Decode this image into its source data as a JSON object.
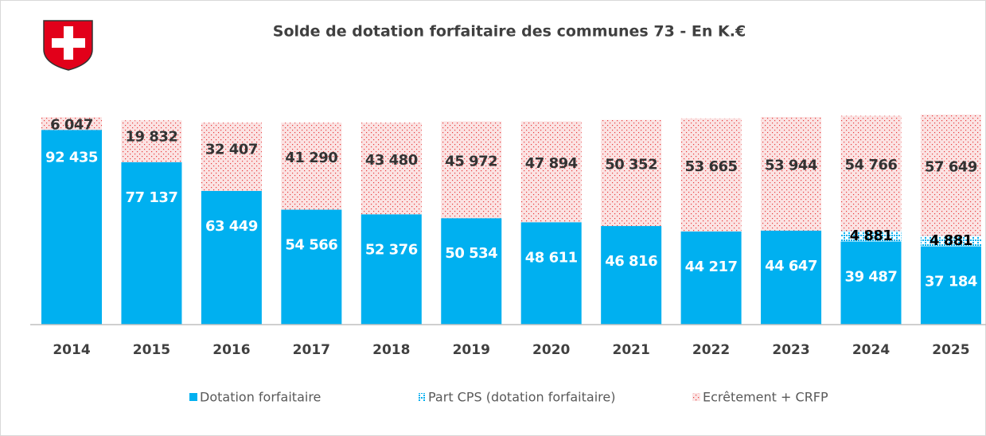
{
  "chart_data": {
    "type": "stacked_bar",
    "title": "Solde de dotation forfaitaire des communes 73 - En K.€",
    "categories": [
      "2014",
      "2015",
      "2016",
      "2017",
      "2018",
      "2019",
      "2020",
      "2021",
      "2022",
      "2023",
      "2024",
      "2025"
    ],
    "series": [
      {
        "name": "Dotation forfaitaire",
        "color": "#00b0f0",
        "label_color": "#ffffff",
        "values": [
          92435,
          77137,
          63449,
          54566,
          52376,
          50534,
          48611,
          46816,
          44217,
          44647,
          39487,
          37184
        ],
        "value_labels": [
          "92 435",
          "77 137",
          "63 449",
          "54 566",
          "52 376",
          "50 534",
          "48 611",
          "46 816",
          "44 217",
          "44 647",
          "39 487",
          "37 184"
        ]
      },
      {
        "name": "Part CPS (dotation forfaitaire)",
        "color": "#00b0f0",
        "label_color": "#000000",
        "values": [
          null,
          null,
          null,
          null,
          null,
          null,
          null,
          null,
          null,
          null,
          4881,
          4881
        ],
        "value_labels": [
          null,
          null,
          null,
          null,
          null,
          null,
          null,
          null,
          null,
          null,
          "4 881",
          "4 881"
        ]
      },
      {
        "name": "Ecrêtement + CRFP",
        "color": "#e8393a",
        "label_color": "#333333",
        "values": [
          6047,
          19832,
          32407,
          41290,
          43480,
          45972,
          47894,
          50352,
          53665,
          53944,
          54766,
          57649
        ],
        "value_labels": [
          "6 047",
          "19 832",
          "32 407",
          "41 290",
          "43 480",
          "45 972",
          "47 894",
          "50 352",
          "53 665",
          "53 944",
          "54 766",
          "57 649"
        ]
      }
    ]
  }
}
